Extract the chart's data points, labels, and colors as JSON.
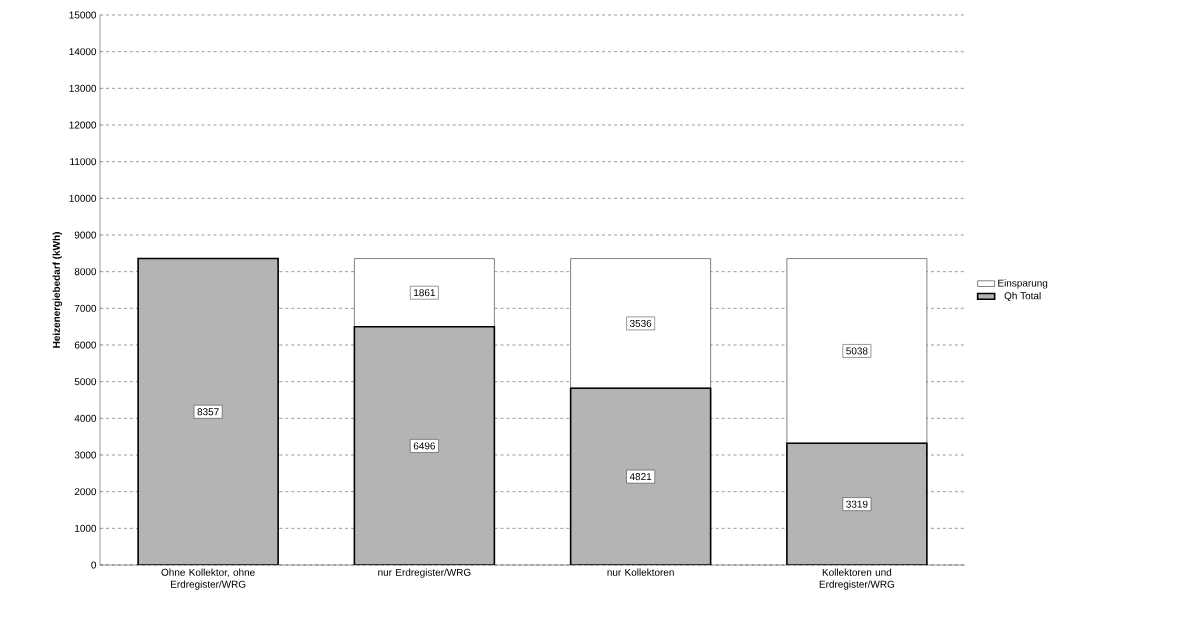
{
  "chart_data": {
    "type": "bar",
    "stacked": true,
    "ylabel": "Heizenergiebedarf (kWh)",
    "categories": [
      "Ohne Kollektor, ohne Erdregister/WRG",
      "nur Erdregister/WRG",
      "nur Kollektoren",
      "Kollektoren und Erdregister/WRG"
    ],
    "series": [
      {
        "name": "Qh Total",
        "color": "#b4b4b4",
        "values": [
          8357,
          6496,
          4821,
          3319
        ]
      },
      {
        "name": "Einsparung",
        "color": "#ffffff",
        "values": [
          null,
          1861,
          3536,
          5038
        ]
      }
    ],
    "ylim": [
      0,
      15000
    ],
    "yticks": [
      0,
      1000,
      2000,
      3000,
      4000,
      5000,
      6000,
      7000,
      8000,
      9000,
      10000,
      11000,
      12000,
      13000,
      14000,
      15000
    ],
    "grid": "y",
    "legend": "right",
    "data_labels": true
  }
}
